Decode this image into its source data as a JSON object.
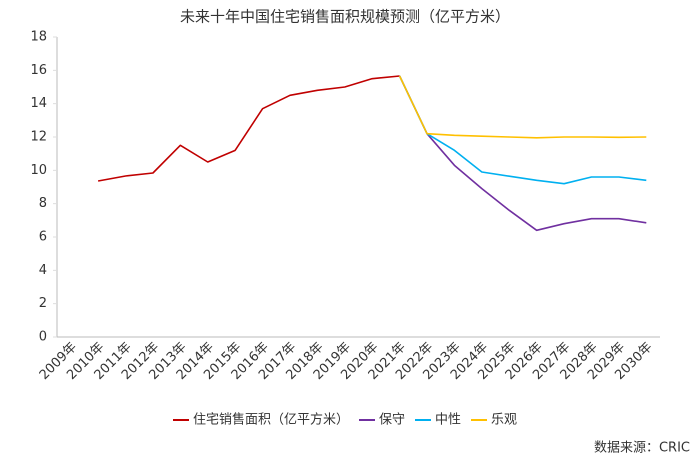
{
  "chart_data": {
    "type": "line",
    "title": "未来十年中国住宅销售面积规模预测（亿平方米）",
    "categories": [
      "2009年",
      "2010年",
      "2011年",
      "2012年",
      "2013年",
      "2014年",
      "2015年",
      "2016年",
      "2017年",
      "2018年",
      "2019年",
      "2020年",
      "2021年",
      "2022年",
      "2023年",
      "2024年",
      "2025年",
      "2026年",
      "2027年",
      "2028年",
      "2029年",
      "2030年"
    ],
    "series": [
      {
        "name": "住宅销售面积（亿平方米）",
        "color": "#c00000",
        "values": [
          null,
          9.36,
          9.66,
          9.84,
          11.5,
          10.5,
          11.2,
          13.7,
          14.5,
          14.8,
          15.0,
          15.5,
          15.66,
          null,
          null,
          null,
          null,
          null,
          null,
          null,
          null,
          null
        ]
      },
      {
        "name": "保守",
        "color": "#7030a0",
        "values": [
          null,
          null,
          null,
          null,
          null,
          null,
          null,
          null,
          null,
          null,
          null,
          null,
          15.66,
          12.2,
          10.3,
          8.9,
          7.6,
          6.4,
          6.8,
          7.1,
          7.1,
          6.85
        ]
      },
      {
        "name": "中性",
        "color": "#00b0f0",
        "values": [
          null,
          null,
          null,
          null,
          null,
          null,
          null,
          null,
          null,
          null,
          null,
          null,
          15.66,
          12.2,
          11.2,
          9.9,
          9.65,
          9.4,
          9.2,
          9.6,
          9.6,
          9.4
        ]
      },
      {
        "name": "乐观",
        "color": "#ffc000",
        "values": [
          null,
          null,
          null,
          null,
          null,
          null,
          null,
          null,
          null,
          null,
          null,
          null,
          15.66,
          12.2,
          12.1,
          12.05,
          12.0,
          11.95,
          12.0,
          12.0,
          11.98,
          12.0
        ]
      }
    ],
    "ylim": [
      0,
      18
    ],
    "yticks": [
      0,
      2,
      4,
      6,
      8,
      10,
      12,
      14,
      16,
      18
    ],
    "grid": false,
    "legend": "bottom",
    "source": "数据来源：CRIC"
  }
}
